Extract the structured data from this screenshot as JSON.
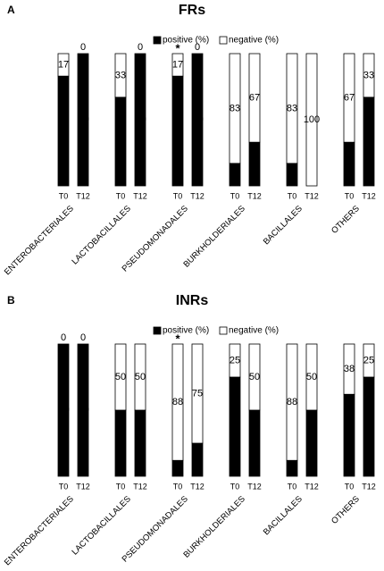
{
  "chart_data": [
    {
      "type": "stacked-bar",
      "panel": "A",
      "title": "FRs",
      "annotation": "*",
      "groups": [
        "ENTEROBACTERIALES",
        "LACTOBACILLALES",
        "PSEUDOMONADALES",
        "BURKHOLDERIALES",
        "BACILLALES",
        "OTHERS"
      ],
      "categories": [
        "T0",
        "T12",
        "T0",
        "T12",
        "T0",
        "T12",
        "T0",
        "T12",
        "T0",
        "T12",
        "T0",
        "T12"
      ],
      "series": [
        {
          "name": "positive (%)",
          "color": "#000000",
          "values": [
            83,
            100,
            67,
            100,
            83,
            100,
            17,
            33,
            17,
            0,
            33,
            67
          ]
        },
        {
          "name": "negative (%)",
          "color": "#ffffff",
          "values": [
            17,
            0,
            33,
            0,
            17,
            0,
            83,
            67,
            83,
            100,
            67,
            33
          ]
        }
      ]
    },
    {
      "type": "stacked-bar",
      "panel": "B",
      "title": "INRs",
      "annotation": "*",
      "groups": [
        "ENTEROBACTERIALES",
        "LACTOBACILLALES",
        "PSEUDOMONADALES",
        "BURKHOLDERIALES",
        "BACILLALES",
        "OTHERS"
      ],
      "categories": [
        "T0",
        "T12",
        "T0",
        "T12",
        "T0",
        "T12",
        "T0",
        "T12",
        "T0",
        "T12",
        "T0",
        "T12"
      ],
      "series": [
        {
          "name": "positive (%)",
          "color": "#000000",
          "values": [
            100,
            100,
            50,
            50,
            12,
            25,
            75,
            50,
            12,
            50,
            62,
            75
          ]
        },
        {
          "name": "negative (%)",
          "color": "#ffffff",
          "values": [
            0,
            0,
            50,
            50,
            88,
            75,
            25,
            50,
            88,
            50,
            38,
            25
          ]
        }
      ]
    }
  ]
}
